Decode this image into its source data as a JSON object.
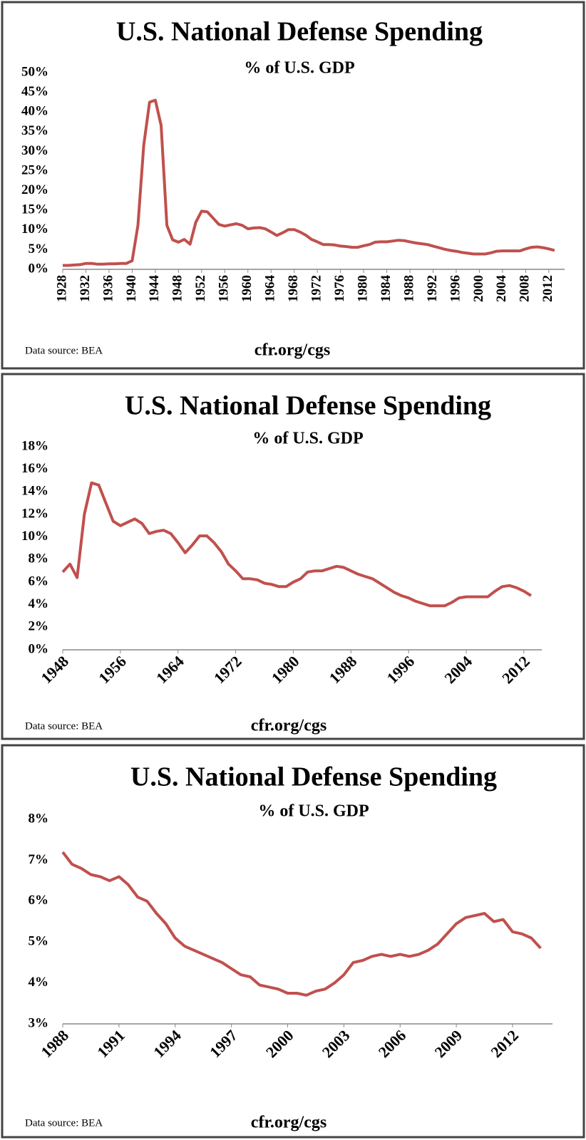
{
  "chart_data": [
    {
      "type": "line",
      "title": "U.S. National Defense Spending",
      "subtitle": "% of U.S. GDP",
      "source": "Data source: BEA",
      "footer": "cfr.org/cgs",
      "color": "#c0504d",
      "x": [
        1928,
        1929,
        1930,
        1931,
        1932,
        1933,
        1934,
        1935,
        1936,
        1937,
        1938,
        1939,
        1940,
        1941,
        1942,
        1943,
        1944,
        1945,
        1946,
        1947,
        1948,
        1949,
        1950,
        1951,
        1952,
        1953,
        1954,
        1955,
        1956,
        1957,
        1958,
        1959,
        1960,
        1961,
        1962,
        1963,
        1964,
        1965,
        1966,
        1967,
        1968,
        1969,
        1970,
        1971,
        1972,
        1973,
        1974,
        1975,
        1976,
        1977,
        1978,
        1979,
        1980,
        1981,
        1982,
        1983,
        1984,
        1985,
        1986,
        1987,
        1988,
        1989,
        1990,
        1991,
        1992,
        1993,
        1994,
        1995,
        1996,
        1997,
        1998,
        1999,
        2000,
        2001,
        2002,
        2003,
        2004,
        2005,
        2006,
        2007,
        2008,
        2009,
        2010,
        2011,
        2012,
        2013
      ],
      "values": [
        1.0,
        1.0,
        1.1,
        1.2,
        1.5,
        1.5,
        1.3,
        1.3,
        1.4,
        1.4,
        1.5,
        1.5,
        2.2,
        11.2,
        31.5,
        42.5,
        43.0,
        36.6,
        11.2,
        7.5,
        6.9,
        7.6,
        6.4,
        12.0,
        14.8,
        14.6,
        13.0,
        11.4,
        11.0,
        11.3,
        11.6,
        11.2,
        10.3,
        10.5,
        10.6,
        10.3,
        9.5,
        8.6,
        9.3,
        10.1,
        10.1,
        9.5,
        8.7,
        7.6,
        7.0,
        6.3,
        6.3,
        6.2,
        5.9,
        5.8,
        5.6,
        5.6,
        6.0,
        6.3,
        6.9,
        7.0,
        7.0,
        7.2,
        7.4,
        7.3,
        7.0,
        6.7,
        6.5,
        6.3,
        5.9,
        5.5,
        5.1,
        4.8,
        4.6,
        4.3,
        4.1,
        3.9,
        3.9,
        3.9,
        4.2,
        4.6,
        4.7,
        4.7,
        4.7,
        4.7,
        5.2,
        5.6,
        5.7,
        5.5,
        5.2,
        4.8
      ],
      "xlim": [
        1928,
        2013.5
      ],
      "xticks": [
        1928,
        1932,
        1936,
        1940,
        1944,
        1948,
        1952,
        1956,
        1960,
        1964,
        1968,
        1972,
        1976,
        1980,
        1984,
        1988,
        1992,
        1996,
        2000,
        2004,
        2008,
        2012
      ],
      "ylim": [
        0,
        50
      ],
      "yticks": [
        {
          "value": 0,
          "label": "0%"
        },
        {
          "value": 5,
          "label": "5%"
        },
        {
          "value": 10,
          "label": "10%"
        },
        {
          "value": 15,
          "label": "15%"
        },
        {
          "value": 20,
          "label": "20%"
        },
        {
          "value": 25,
          "label": "25%"
        },
        {
          "value": 30,
          "label": "30%"
        },
        {
          "value": 35,
          "label": "35%"
        },
        {
          "value": 40,
          "label": "40%"
        },
        {
          "value": 45,
          "label": "45%"
        },
        {
          "value": 50,
          "label": "50%"
        }
      ]
    },
    {
      "type": "line",
      "title": "U.S. National Defense Spending",
      "subtitle": "% of U.S. GDP",
      "source": "Data source: BEA",
      "footer": "cfr.org/cgs",
      "color": "#c0504d",
      "x": [
        1948,
        1949,
        1950,
        1951,
        1952,
        1953,
        1954,
        1955,
        1956,
        1957,
        1958,
        1959,
        1960,
        1961,
        1962,
        1963,
        1964,
        1965,
        1966,
        1967,
        1968,
        1969,
        1970,
        1971,
        1972,
        1973,
        1974,
        1975,
        1976,
        1977,
        1978,
        1979,
        1980,
        1981,
        1982,
        1983,
        1984,
        1985,
        1986,
        1987,
        1988,
        1989,
        1990,
        1991,
        1992,
        1993,
        1994,
        1995,
        1996,
        1997,
        1998,
        1999,
        2000,
        2001,
        2002,
        2003,
        2004,
        2005,
        2006,
        2007,
        2008,
        2009,
        2010,
        2011,
        2012,
        2013
      ],
      "values": [
        6.9,
        7.6,
        6.4,
        12.0,
        14.8,
        14.6,
        13.0,
        11.4,
        11.0,
        11.3,
        11.6,
        11.2,
        10.3,
        10.5,
        10.6,
        10.3,
        9.5,
        8.6,
        9.3,
        10.1,
        10.1,
        9.5,
        8.7,
        7.6,
        7.0,
        6.3,
        6.3,
        6.2,
        5.9,
        5.8,
        5.6,
        5.6,
        6.0,
        6.3,
        6.9,
        7.0,
        7.0,
        7.2,
        7.4,
        7.3,
        7.0,
        6.7,
        6.5,
        6.3,
        5.9,
        5.5,
        5.1,
        4.8,
        4.6,
        4.3,
        4.1,
        3.9,
        3.9,
        3.9,
        4.2,
        4.6,
        4.7,
        4.7,
        4.7,
        4.7,
        5.2,
        5.6,
        5.7,
        5.5,
        5.2,
        4.8
      ],
      "xlim": [
        1948,
        2013.5
      ],
      "xticks": [
        1948,
        1956,
        1964,
        1972,
        1980,
        1988,
        1996,
        2004,
        2012
      ],
      "ylim": [
        0,
        18
      ],
      "yticks": [
        {
          "value": 0,
          "label": "0%"
        },
        {
          "value": 2,
          "label": "2%"
        },
        {
          "value": 4,
          "label": "4%"
        },
        {
          "value": 6,
          "label": "6%"
        },
        {
          "value": 8,
          "label": "8%"
        },
        {
          "value": 10,
          "label": "10%"
        },
        {
          "value": 12,
          "label": "12%"
        },
        {
          "value": 14,
          "label": "14%"
        },
        {
          "value": 16,
          "label": "16%"
        },
        {
          "value": 18,
          "label": "18%"
        }
      ]
    },
    {
      "type": "line",
      "title": "U.S. National Defense Spending",
      "subtitle": "% of U.S. GDP",
      "source": "Data source: BEA",
      "footer": "cfr.org/cgs",
      "color": "#c0504d",
      "x": [
        1988,
        1988.5,
        1989,
        1989.5,
        1990,
        1990.5,
        1991,
        1991.5,
        1992,
        1992.5,
        1993,
        1993.5,
        1994,
        1994.5,
        1995,
        1995.5,
        1996,
        1996.5,
        1997,
        1997.5,
        1998,
        1998.5,
        1999,
        1999.5,
        2000,
        2000.5,
        2001,
        2001.5,
        2002,
        2002.5,
        2003,
        2003.5,
        2004,
        2004.5,
        2005,
        2005.5,
        2006,
        2006.5,
        2007,
        2007.5,
        2008,
        2008.5,
        2009,
        2009.5,
        2010,
        2010.5,
        2011,
        2011.5,
        2012,
        2012.5,
        2013,
        2013.5
      ],
      "values": [
        7.2,
        6.9,
        6.8,
        6.65,
        6.6,
        6.5,
        6.6,
        6.4,
        6.1,
        6.0,
        5.7,
        5.45,
        5.1,
        4.9,
        4.8,
        4.7,
        4.6,
        4.5,
        4.35,
        4.2,
        4.15,
        3.95,
        3.9,
        3.85,
        3.75,
        3.75,
        3.7,
        3.8,
        3.85,
        4.0,
        4.2,
        4.5,
        4.55,
        4.65,
        4.7,
        4.65,
        4.7,
        4.65,
        4.7,
        4.8,
        4.95,
        5.2,
        5.45,
        5.6,
        5.65,
        5.7,
        5.5,
        5.55,
        5.25,
        5.2,
        5.1,
        4.85
      ],
      "xlim": [
        1988,
        2013.75
      ],
      "xticks": [
        1988,
        1991,
        1994,
        1997,
        2000,
        2003,
        2006,
        2009,
        2012
      ],
      "ylim": [
        3,
        8
      ],
      "yticks": [
        {
          "value": 3,
          "label": "3%"
        },
        {
          "value": 4,
          "label": "4%"
        },
        {
          "value": 5,
          "label": "5%"
        },
        {
          "value": 6,
          "label": "6%"
        },
        {
          "value": 7,
          "label": "7%"
        },
        {
          "value": 8,
          "label": "8%"
        }
      ]
    }
  ]
}
